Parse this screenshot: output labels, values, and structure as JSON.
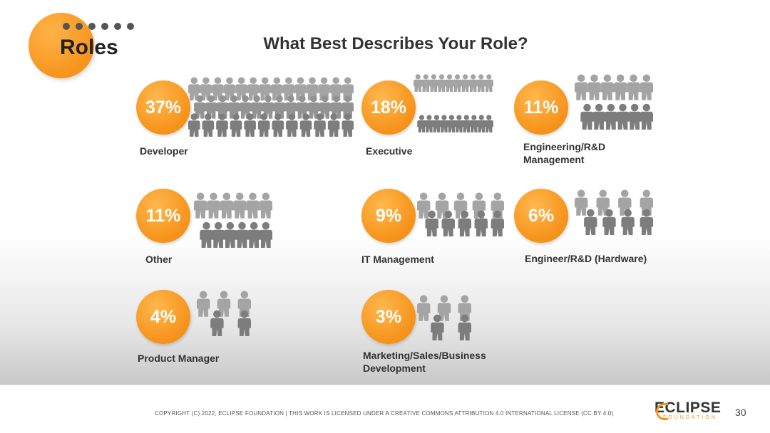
{
  "header": {
    "title": "Roles",
    "main_title": "What Best Describes Your Role?"
  },
  "roles": [
    {
      "percent": "37%",
      "label": "Developer"
    },
    {
      "percent": "18%",
      "label": "Executive"
    },
    {
      "percent": "11%",
      "label": "Engineering/R&D Management"
    },
    {
      "percent": "11%",
      "label": "Other"
    },
    {
      "percent": "9%",
      "label": "IT Management"
    },
    {
      "percent": "6%",
      "label": "Engineer/R&D (Hardware)"
    },
    {
      "percent": "4%",
      "label": "Product Manager"
    },
    {
      "percent": "3%",
      "label": "Marketing/Sales/Business Development"
    }
  ],
  "footer": {
    "copyright": "COPYRIGHT (C) 2022, ECLIPSE FOUNDATION | THIS WORK IS LICENSED UNDER A CREATIVE COMMONS ATTRIBUTION 4.0 INTERNATIONAL LICENSE (CC BY 4.0)",
    "logo_main": "ECLIPSE",
    "logo_sub": "FOUNDATION",
    "page_number": "30"
  },
  "colors": {
    "accent": "#f7941d",
    "people": "#8c8c8c"
  },
  "icons": {
    "dots": "dots-icon",
    "people": "people-group-icon"
  }
}
